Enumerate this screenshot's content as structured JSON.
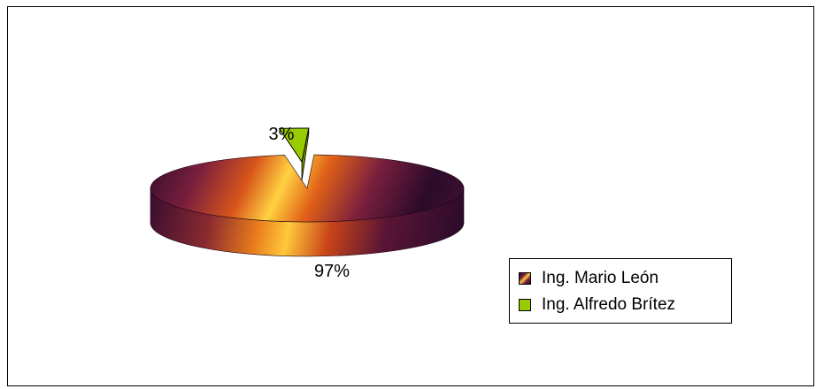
{
  "chart_data": {
    "type": "pie",
    "style": "3d-exploded",
    "slices": [
      {
        "label": "Ing. Mario León",
        "value": 97,
        "data_label": "97%",
        "color": "#7a1f3d"
      },
      {
        "label": "Ing. Alfredo Brítez",
        "value": 3,
        "data_label": "3%",
        "color": "#99cc00"
      }
    ],
    "legend_position": "right",
    "title": ""
  }
}
